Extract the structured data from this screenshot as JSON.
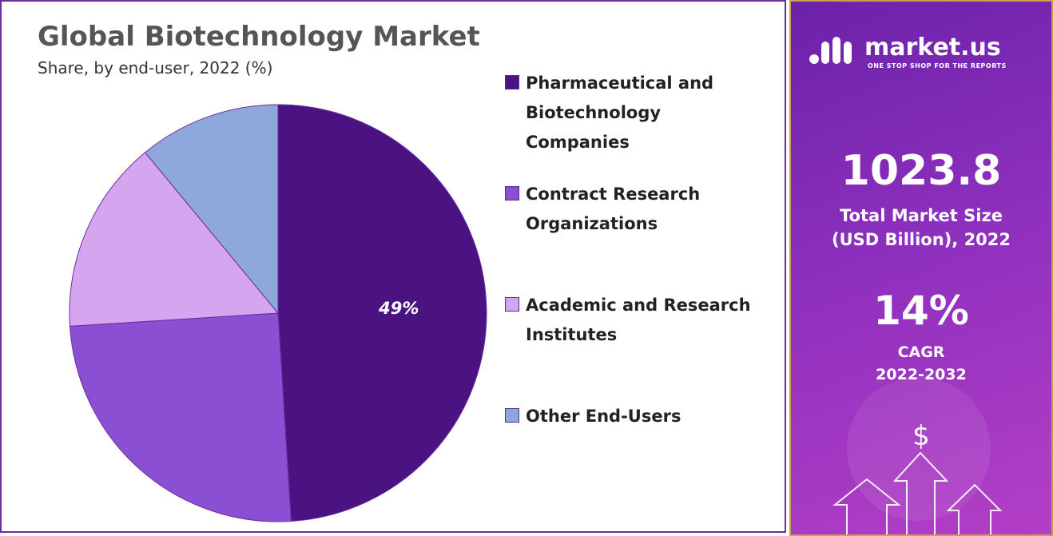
{
  "chart_data": {
    "type": "pie",
    "title": "Global Biotechnology Market",
    "subtitle": "Share, by end-user, 2022 (%)",
    "categories": [
      "Pharmaceutical and Biotechnology Companies",
      "Contract Research Organizations",
      "Academic and Research Institutes",
      "Other End-Users"
    ],
    "values": [
      49,
      25,
      15,
      11
    ],
    "value_labels": [
      "49%",
      null,
      null,
      null
    ],
    "colors": [
      "#4b1381",
      "#8a4fd3",
      "#d5a6ef",
      "#8fa8dc"
    ],
    "legend": "right"
  },
  "side_panel": {
    "brand": "market.us",
    "tagline": "ONE STOP SHOP FOR THE REPORTS",
    "market_size": "1023.8",
    "market_size_label_1": "Total Market Size",
    "market_size_label_2": "(USD Billion), 2022",
    "cagr": "14%",
    "cagr_label": "CAGR",
    "cagr_period": "2022-2032"
  }
}
